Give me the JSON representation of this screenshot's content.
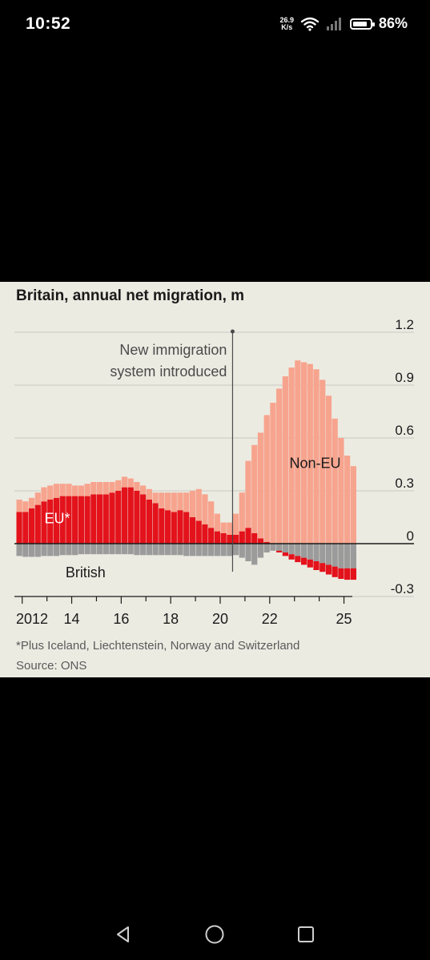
{
  "status_bar": {
    "time": "10:52",
    "net_speed_value": "26.9",
    "net_speed_unit": "K/s",
    "battery_text": "86%",
    "battery_level": 0.86
  },
  "chart_data": {
    "type": "area",
    "stacked": true,
    "title": "Britain, annual net migration, m",
    "footnote": "*Plus Iceland, Liechtenstein, Norway and Switzerland",
    "source": "Source: ONS",
    "yaxis_position": "right",
    "ylim": [
      -0.3,
      1.2
    ],
    "yticks": [
      -0.3,
      0,
      0.3,
      0.6,
      0.9,
      1.2
    ],
    "ytick_labels": [
      "-0.3",
      "0",
      "0.3",
      "0.6",
      "0.9",
      "1.2"
    ],
    "xlim": [
      2011.75,
      2025.5
    ],
    "xticks": [
      2012,
      2014,
      2016,
      2018,
      2020,
      2022,
      2025
    ],
    "xtick_labels": [
      "2012",
      "14",
      "16",
      "18",
      "20",
      "22",
      "25"
    ],
    "annotation": {
      "x": 2020.5,
      "lines": [
        "New immigration",
        "system introduced"
      ]
    },
    "x": [
      2011.75,
      2012,
      2012.25,
      2012.5,
      2012.75,
      2013,
      2013.25,
      2013.5,
      2013.75,
      2014,
      2014.25,
      2014.5,
      2014.75,
      2015,
      2015.25,
      2015.5,
      2015.75,
      2016,
      2016.25,
      2016.5,
      2016.75,
      2017,
      2017.25,
      2017.5,
      2017.75,
      2018,
      2018.25,
      2018.5,
      2018.75,
      2019,
      2019.25,
      2019.5,
      2019.75,
      2020,
      2020.25,
      2020.5,
      2020.75,
      2021,
      2021.25,
      2021.5,
      2021.75,
      2022,
      2022.25,
      2022.5,
      2022.75,
      2023,
      2023.25,
      2023.5,
      2023.75,
      2024,
      2024.25,
      2024.5,
      2024.75,
      2025,
      2025.25
    ],
    "series": [
      {
        "name": "British",
        "color": "#9b9b9b",
        "values": [
          -0.07,
          -0.075,
          -0.075,
          -0.075,
          -0.07,
          -0.07,
          -0.07,
          -0.065,
          -0.065,
          -0.065,
          -0.06,
          -0.06,
          -0.06,
          -0.06,
          -0.06,
          -0.06,
          -0.06,
          -0.06,
          -0.06,
          -0.065,
          -0.065,
          -0.065,
          -0.065,
          -0.065,
          -0.065,
          -0.065,
          -0.065,
          -0.07,
          -0.07,
          -0.07,
          -0.07,
          -0.07,
          -0.07,
          -0.07,
          -0.07,
          -0.065,
          -0.08,
          -0.1,
          -0.12,
          -0.08,
          -0.05,
          -0.04,
          -0.04,
          -0.05,
          -0.06,
          -0.07,
          -0.08,
          -0.09,
          -0.1,
          -0.11,
          -0.12,
          -0.13,
          -0.14,
          -0.14,
          -0.14
        ]
      },
      {
        "name": "EU*",
        "color": "#e3121b",
        "values": [
          0.18,
          0.18,
          0.2,
          0.22,
          0.24,
          0.25,
          0.26,
          0.27,
          0.27,
          0.27,
          0.27,
          0.27,
          0.28,
          0.28,
          0.28,
          0.29,
          0.3,
          0.32,
          0.32,
          0.3,
          0.28,
          0.25,
          0.23,
          0.2,
          0.19,
          0.18,
          0.19,
          0.18,
          0.15,
          0.13,
          0.11,
          0.09,
          0.07,
          0.06,
          0.05,
          0.05,
          0.07,
          0.09,
          0.06,
          0.03,
          0.01,
          0,
          -0.01,
          -0.02,
          -0.03,
          -0.035,
          -0.04,
          -0.045,
          -0.05,
          -0.05,
          -0.055,
          -0.06,
          -0.06,
          -0.065,
          -0.065
        ]
      },
      {
        "name": "Non-EU",
        "color": "#f7a48e",
        "values": [
          0.07,
          0.06,
          0.06,
          0.07,
          0.08,
          0.08,
          0.08,
          0.07,
          0.07,
          0.06,
          0.06,
          0.07,
          0.07,
          0.07,
          0.07,
          0.06,
          0.06,
          0.06,
          0.05,
          0.05,
          0.05,
          0.06,
          0.06,
          0.09,
          0.1,
          0.11,
          0.1,
          0.11,
          0.15,
          0.18,
          0.17,
          0.15,
          0.1,
          0.06,
          0.07,
          0.12,
          0.22,
          0.38,
          0.5,
          0.6,
          0.72,
          0.8,
          0.88,
          0.95,
          1.0,
          1.04,
          1.03,
          1.02,
          0.99,
          0.93,
          0.84,
          0.71,
          0.6,
          0.5,
          0.44
        ]
      }
    ],
    "series_labels": [
      {
        "name": "British",
        "x": 2013.75,
        "y": -0.19,
        "color": "#1a1a1a"
      },
      {
        "name": "EU*",
        "x": 2012.9,
        "y": 0.115,
        "color": "#ffffff"
      },
      {
        "name": "Non-EU",
        "x": 2022.8,
        "y": 0.43,
        "color": "#1a1a1a"
      }
    ],
    "grid": true
  }
}
